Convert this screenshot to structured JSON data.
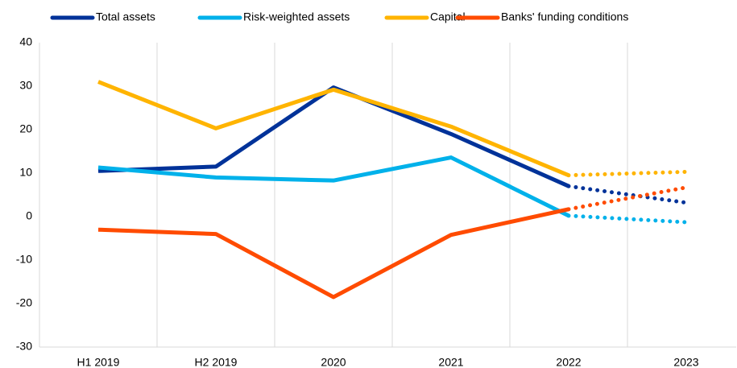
{
  "chart_data": {
    "type": "line",
    "categories": [
      "H1 2019",
      "H2 2019",
      "2020",
      "2021",
      "2022",
      "2023"
    ],
    "series": [
      {
        "name": "Total assets",
        "color": "#003299",
        "values": [
          10.5,
          11.5,
          29.7,
          19,
          7,
          3.2
        ]
      },
      {
        "name": "Risk-weighted assets",
        "color": "#00b1ea",
        "values": [
          11.3,
          9,
          8.3,
          13.6,
          0.2,
          -1.3
        ]
      },
      {
        "name": "Capital",
        "color": "#ffb400",
        "values": [
          31,
          20.3,
          29.2,
          20.7,
          9.5,
          10.3
        ]
      },
      {
        "name": "Banks' funding conditions",
        "color": "#ff4b00",
        "values": [
          -3,
          -4,
          -18.5,
          -4.2,
          1.7,
          6.7
        ]
      }
    ],
    "ylim": [
      -30,
      40
    ],
    "yticks": [
      -30,
      -20,
      -10,
      0,
      10,
      20,
      30,
      40
    ],
    "dotted_from_index": 4,
    "legend": "top"
  }
}
